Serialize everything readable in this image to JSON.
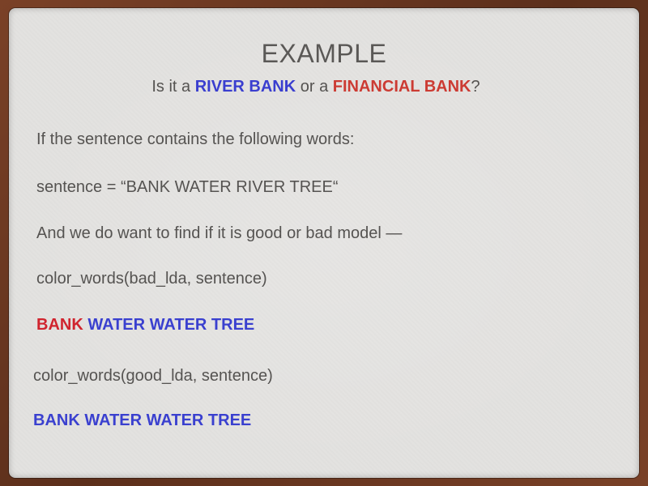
{
  "slide": {
    "title": "EXAMPLE",
    "subtitle": {
      "prefix": "Is it a ",
      "river": "RIVER BANK",
      "middle": " or a ",
      "financial": "FINANCIAL BANK",
      "suffix": "?"
    },
    "line1": "If the sentence contains the following words:",
    "line2": "sentence = “BANK WATER RIVER TREE“",
    "line3": "And we do want to find if it is good or bad model —",
    "line4": "color_words(bad_lda, sentence)",
    "bad_result": {
      "word1": "BANK",
      "rest": "WATER WATER TREE"
    },
    "line5": "color_words(good_lda, sentence)",
    "good_result": "BANK WATER WATER TREE"
  },
  "colors": {
    "river_blue": "#3a3ecf",
    "financial_red": "#cc3b33",
    "bad_word_red": "#d0242e",
    "word_blue": "#3a40cf"
  }
}
